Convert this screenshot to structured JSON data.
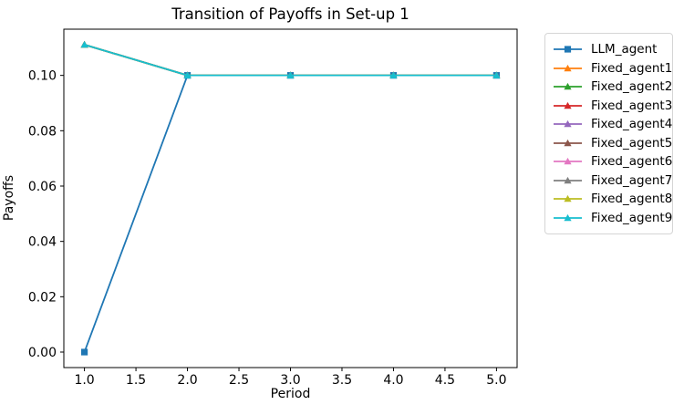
{
  "figure": {
    "background": "#ffffff"
  },
  "chart_data": {
    "type": "line",
    "title": "Transition of Payoffs in Set-up 1",
    "xlabel": "Period",
    "ylabel": "Payoffs",
    "x": [
      1,
      2,
      3,
      4,
      5
    ],
    "series": [
      {
        "name": "LLM_agent",
        "color": "#1f77b4",
        "marker": "square",
        "values": [
          0.0,
          0.1,
          0.1,
          0.1,
          0.1
        ]
      },
      {
        "name": "Fixed_agent1",
        "color": "#ff7f0e",
        "marker": "triangle",
        "values": [
          0.1111,
          0.1,
          0.1,
          0.1,
          0.1
        ]
      },
      {
        "name": "Fixed_agent2",
        "color": "#2ca02c",
        "marker": "triangle",
        "values": [
          0.1111,
          0.1,
          0.1,
          0.1,
          0.1
        ]
      },
      {
        "name": "Fixed_agent3",
        "color": "#d62728",
        "marker": "triangle",
        "values": [
          0.1111,
          0.1,
          0.1,
          0.1,
          0.1
        ]
      },
      {
        "name": "Fixed_agent4",
        "color": "#9467bd",
        "marker": "triangle",
        "values": [
          0.1111,
          0.1,
          0.1,
          0.1,
          0.1
        ]
      },
      {
        "name": "Fixed_agent5",
        "color": "#8c564b",
        "marker": "triangle",
        "values": [
          0.1111,
          0.1,
          0.1,
          0.1,
          0.1
        ]
      },
      {
        "name": "Fixed_agent6",
        "color": "#e377c2",
        "marker": "triangle",
        "values": [
          0.1111,
          0.1,
          0.1,
          0.1,
          0.1
        ]
      },
      {
        "name": "Fixed_agent7",
        "color": "#7f7f7f",
        "marker": "triangle",
        "values": [
          0.1111,
          0.1,
          0.1,
          0.1,
          0.1
        ]
      },
      {
        "name": "Fixed_agent8",
        "color": "#bcbd22",
        "marker": "triangle",
        "values": [
          0.1111,
          0.1,
          0.1,
          0.1,
          0.1
        ]
      },
      {
        "name": "Fixed_agent9",
        "color": "#17becf",
        "marker": "triangle",
        "values": [
          0.1111,
          0.1,
          0.1,
          0.1,
          0.1
        ]
      }
    ],
    "xlim": [
      0.8,
      5.2
    ],
    "ylim": [
      -0.0056,
      0.1167
    ],
    "xtick_values": [
      1.0,
      1.5,
      2.0,
      2.5,
      3.0,
      3.5,
      4.0,
      4.5,
      5.0
    ],
    "xtick_labels": [
      "1.0",
      "1.5",
      "2.0",
      "2.5",
      "3.0",
      "3.5",
      "4.0",
      "4.5",
      "5.0"
    ],
    "ytick_values": [
      0.0,
      0.02,
      0.04,
      0.06,
      0.08,
      0.1
    ],
    "ytick_labels": [
      "0.00",
      "0.02",
      "0.04",
      "0.06",
      "0.08",
      "0.10"
    ],
    "grid": false,
    "legend_position": "outside-right",
    "axis_color": "#000000",
    "line_width": 1.8
  }
}
